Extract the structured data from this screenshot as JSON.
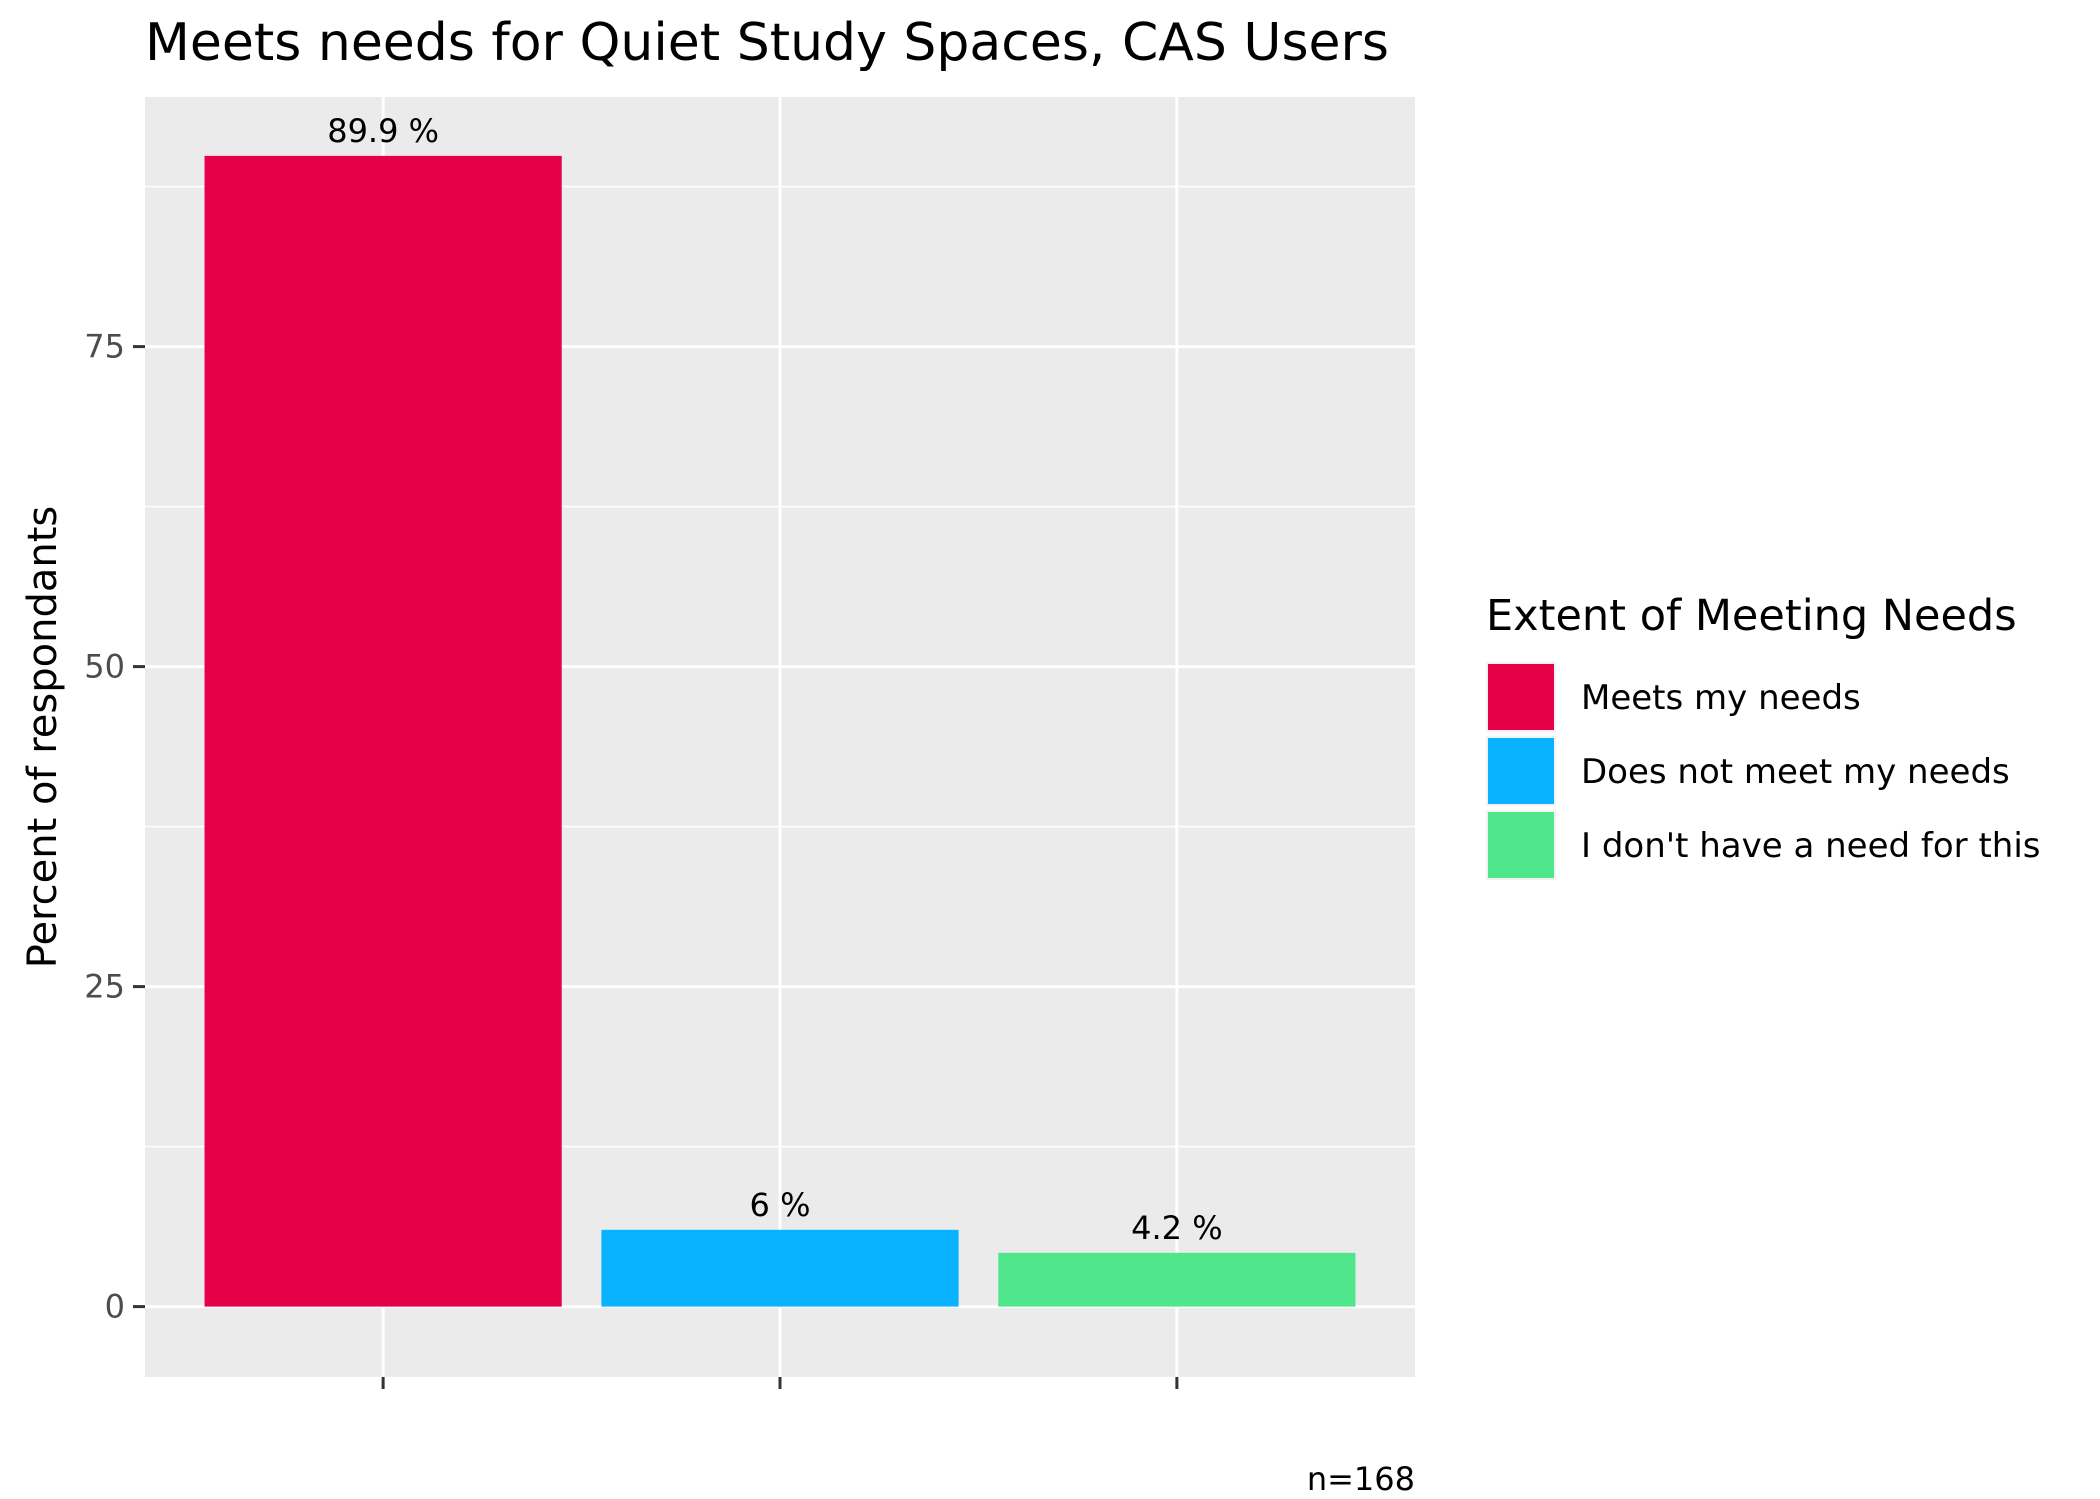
{
  "chart_data": {
    "type": "bar",
    "title": "Meets needs for Quiet Study Spaces, CAS Users",
    "xlabel": "",
    "ylabel": "Percent of respondants",
    "categories": [
      "Meets my needs",
      "Does not meet my needs",
      "I don't have a need for this"
    ],
    "values": [
      89.9,
      6,
      4.2
    ],
    "value_labels": [
      "89.9 %",
      "6 %",
      "4.2 %"
    ],
    "colors": [
      "#e60047",
      "#0ab3ff",
      "#50e68c"
    ],
    "ylim": [
      -5.5,
      94.5
    ],
    "yticks": [
      0,
      25,
      50,
      75
    ],
    "ytick_labels": [
      "0",
      "25",
      "50",
      "75"
    ],
    "grid": true,
    "legend": {
      "title": "Extent of Meeting Needs",
      "position": "right",
      "entries": [
        "Meets my needs",
        "Does not meet my needs",
        "I don't have a need for this"
      ]
    },
    "caption": "n=168"
  }
}
